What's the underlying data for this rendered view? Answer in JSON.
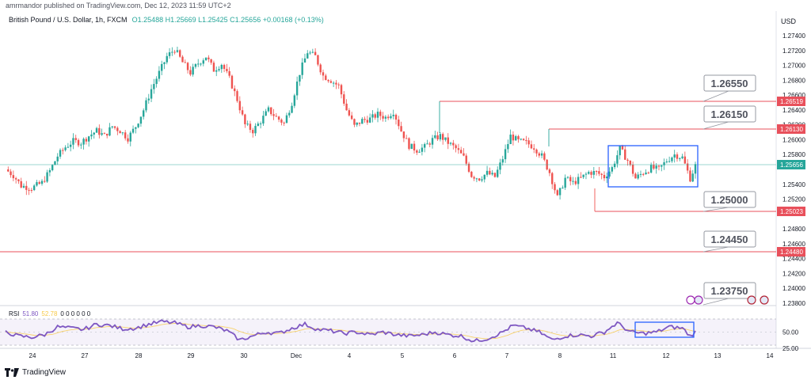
{
  "header": {
    "published": "amrmandor published on TradingView.com, Dec 12, 2023 11:59 UTC+2",
    "instrument": "British Pound / U.S. Dollar, 1h, FXCM",
    "ohlc": "O1.25488  H1.25669  L1.25425  C1.25656  +0.00168 (+0.13%)"
  },
  "footer": {
    "brand": "TradingView"
  },
  "colors": {
    "up": "#26a69a",
    "down": "#ef5350",
    "level": "#e8505b",
    "box": "#2962ff",
    "rsi": "#7e57c2",
    "rsi_ma": "#f7c948",
    "price_line": "#26a69a"
  },
  "chart_data": {
    "type": "candlestick",
    "currency": "USD",
    "ylim": [
      1.2382,
      1.2752
    ],
    "y_ticks": [
      "1.27400",
      "1.27200",
      "1.27000",
      "1.26800",
      "1.26600",
      "1.26400",
      "1.26200",
      "1.26000",
      "1.25800",
      "1.25400",
      "1.25200",
      "1.24800",
      "1.24600",
      "1.24400",
      "1.24200",
      "1.24000",
      "1.23800"
    ],
    "x_ticks": [
      "24",
      "27",
      "28",
      "29",
      "30",
      "Dec",
      "4",
      "5",
      "6",
      "7",
      "8",
      "11",
      "12",
      "13",
      "14"
    ],
    "current_price": "1.25656",
    "price_tags": [
      "1.26519",
      "1.26130",
      "1.25023",
      "1.24480"
    ],
    "level_callouts": [
      "1.26550",
      "1.26150",
      "1.25000",
      "1.24450",
      "1.23750"
    ],
    "path_points": [
      [
        0,
        1.256
      ],
      [
        3,
        1.2552
      ],
      [
        6,
        1.2538
      ],
      [
        10,
        1.2535
      ],
      [
        14,
        1.2542
      ],
      [
        17,
        1.2558
      ],
      [
        20,
        1.2578
      ],
      [
        23,
        1.259
      ],
      [
        26,
        1.2598
      ],
      [
        29,
        1.2596
      ],
      [
        32,
        1.2605
      ],
      [
        35,
        1.2612
      ],
      [
        38,
        1.2605
      ],
      [
        41,
        1.2618
      ],
      [
        44,
        1.2612
      ],
      [
        47,
        1.2602
      ],
      [
        50,
        1.2618
      ],
      [
        53,
        1.264
      ],
      [
        56,
        1.2668
      ],
      [
        59,
        1.269
      ],
      [
        62,
        1.2712
      ],
      [
        65,
        1.2722
      ],
      [
        68,
        1.2704
      ],
      [
        71,
        1.269
      ],
      [
        74,
        1.2703
      ],
      [
        77,
        1.2712
      ],
      [
        80,
        1.2694
      ],
      [
        83,
        1.2702
      ],
      [
        86,
        1.2682
      ],
      [
        89,
        1.2654
      ],
      [
        92,
        1.262
      ],
      [
        95,
        1.2612
      ],
      [
        98,
        1.2625
      ],
      [
        101,
        1.264
      ],
      [
        104,
        1.263
      ],
      [
        107,
        1.2622
      ],
      [
        110,
        1.265
      ],
      [
        113,
        1.269
      ],
      [
        116,
        1.2718
      ],
      [
        119,
        1.2712
      ],
      [
        122,
        1.2686
      ],
      [
        125,
        1.268
      ],
      [
        128,
        1.2672
      ],
      [
        131,
        1.264
      ],
      [
        134,
        1.2618
      ],
      [
        137,
        1.2626
      ],
      [
        140,
        1.2628
      ],
      [
        143,
        1.2634
      ],
      [
        146,
        1.263
      ],
      [
        149,
        1.2638
      ],
      [
        152,
        1.2612
      ],
      [
        155,
        1.2592
      ],
      [
        158,
        1.2586
      ],
      [
        161,
        1.259
      ],
      [
        164,
        1.26
      ],
      [
        167,
        1.2605
      ],
      [
        170,
        1.2596
      ],
      [
        173,
        1.2588
      ],
      [
        176,
        1.2576
      ],
      [
        179,
        1.2552
      ],
      [
        182,
        1.2548
      ],
      [
        185,
        1.2555
      ],
      [
        188,
        1.255
      ],
      [
        191,
        1.2575
      ],
      [
        194,
        1.2605
      ],
      [
        197,
        1.2598
      ],
      [
        200,
        1.2596
      ],
      [
        203,
        1.259
      ],
      [
        206,
        1.2578
      ],
      [
        209,
        1.2556
      ],
      [
        212,
        1.2522
      ],
      [
        215,
        1.2548
      ],
      [
        218,
        1.2542
      ],
      [
        221,
        1.2548
      ],
      [
        224,
        1.2556
      ],
      [
        227,
        1.2556
      ],
      [
        230,
        1.255
      ],
      [
        233,
        1.2562
      ],
      [
        236,
        1.2588
      ],
      [
        239,
        1.2572
      ],
      [
        242,
        1.2548
      ],
      [
        245,
        1.2556
      ],
      [
        248,
        1.2562
      ],
      [
        251,
        1.256
      ],
      [
        254,
        1.2572
      ],
      [
        257,
        1.258
      ],
      [
        260,
        1.2576
      ],
      [
        263,
        1.2548
      ],
      [
        265,
        1.2565
      ]
    ],
    "rsi": {
      "label": "RSI",
      "value": "51.80",
      "ma_value": "52.78",
      "extra": "0 0 0 0 0 0",
      "ylim": [
        20,
        80
      ],
      "y_ticks": [
        "50.00",
        "25.00"
      ],
      "bands": [
        70,
        30
      ],
      "path_points": [
        [
          0,
          50
        ],
        [
          5,
          44
        ],
        [
          10,
          42
        ],
        [
          15,
          46
        ],
        [
          20,
          58
        ],
        [
          25,
          56
        ],
        [
          30,
          54
        ],
        [
          35,
          62
        ],
        [
          40,
          60
        ],
        [
          45,
          55
        ],
        [
          50,
          56
        ],
        [
          55,
          62
        ],
        [
          60,
          66
        ],
        [
          65,
          64
        ],
        [
          70,
          58
        ],
        [
          75,
          60
        ],
        [
          80,
          58
        ],
        [
          85,
          52
        ],
        [
          90,
          38
        ],
        [
          95,
          44
        ],
        [
          100,
          50
        ],
        [
          105,
          48
        ],
        [
          110,
          56
        ],
        [
          115,
          62
        ],
        [
          120,
          54
        ],
        [
          125,
          52
        ],
        [
          130,
          48
        ],
        [
          135,
          50
        ],
        [
          140,
          46
        ],
        [
          145,
          50
        ],
        [
          150,
          46
        ],
        [
          155,
          44
        ],
        [
          160,
          46
        ],
        [
          165,
          50
        ],
        [
          170,
          46
        ],
        [
          175,
          44
        ],
        [
          180,
          36
        ],
        [
          185,
          40
        ],
        [
          190,
          48
        ],
        [
          195,
          60
        ],
        [
          200,
          56
        ],
        [
          205,
          50
        ],
        [
          210,
          38
        ],
        [
          215,
          44
        ],
        [
          220,
          46
        ],
        [
          225,
          44
        ],
        [
          230,
          50
        ],
        [
          235,
          64
        ],
        [
          240,
          50
        ],
        [
          245,
          48
        ],
        [
          250,
          50
        ],
        [
          255,
          58
        ],
        [
          260,
          56
        ],
        [
          263,
          44
        ],
        [
          265,
          50
        ]
      ]
    }
  }
}
